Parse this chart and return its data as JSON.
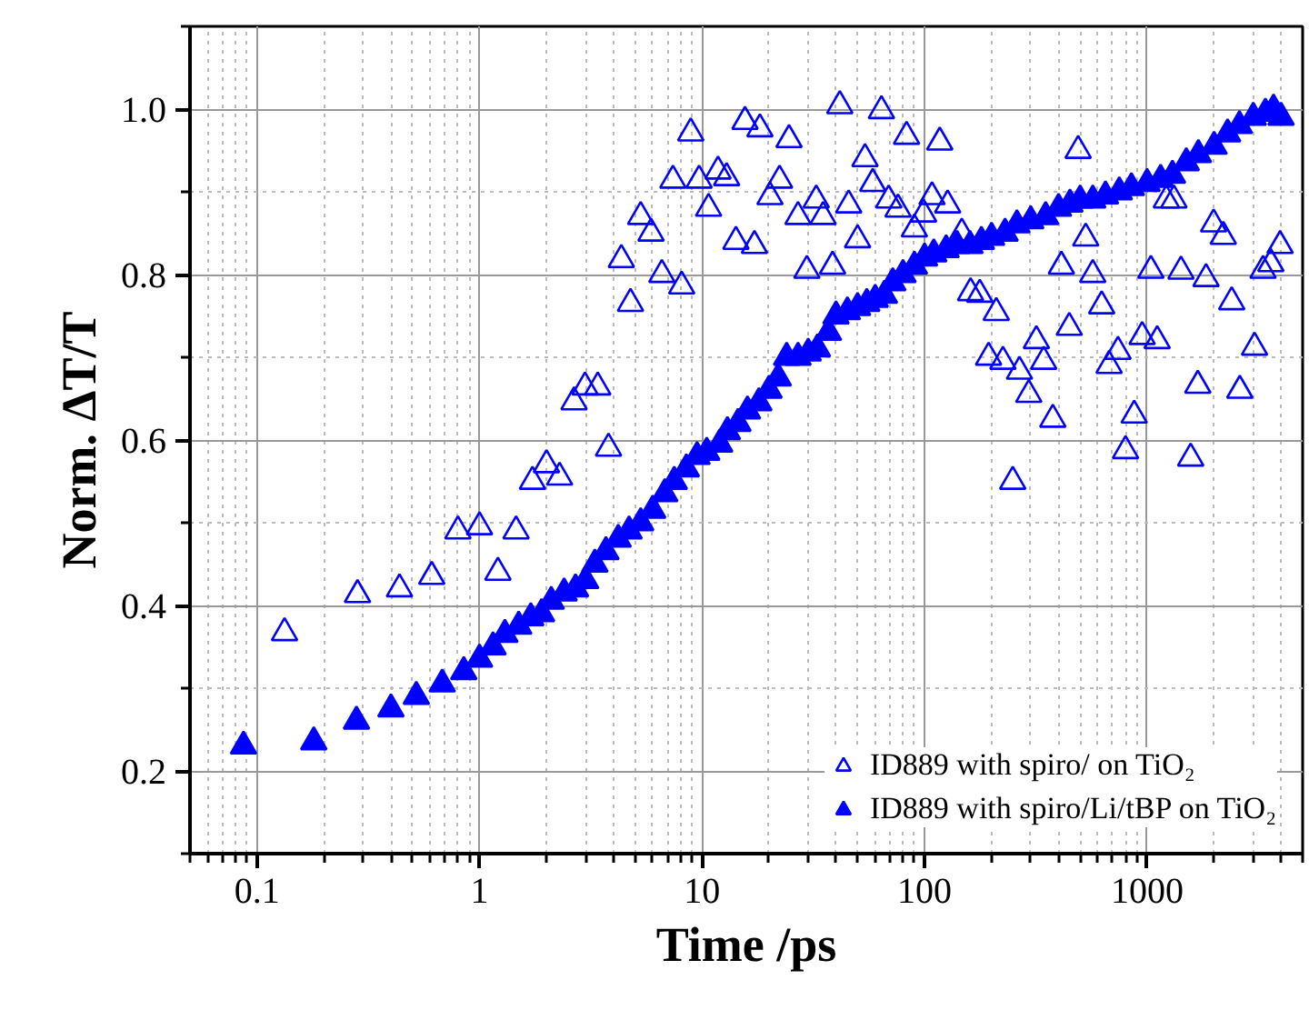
{
  "chart_data": {
    "type": "scatter",
    "xlabel": "Time /ps",
    "ylabel": "Norm. ΔT/T",
    "log": "x",
    "xlim": [
      0.05,
      5000
    ],
    "ylim": [
      0.1,
      1.1
    ],
    "xticks": [
      0.1,
      1,
      10,
      100,
      1000
    ],
    "yticks": [
      0.2,
      0.4,
      0.6,
      0.8,
      {
        "value": 1.0,
        "label": "1.0"
      }
    ],
    "grid": true,
    "legend": "bottom right",
    "series": [
      {
        "name": "ID889 with spiro/ on TiO₂",
        "color": "#0000ff",
        "marker": "triangle-open",
        "x": [
          0.133,
          0.283,
          0.437,
          0.61,
          0.8,
          1.0,
          1.21,
          1.46,
          1.73,
          2.0,
          2.29,
          2.66,
          2.98,
          3.4,
          3.8,
          4.34,
          4.77,
          5.3,
          5.9,
          6.6,
          7.4,
          8.1,
          8.9,
          9.7,
          10.7,
          11.8,
          12.9,
          14.2,
          15.6,
          17.2,
          18.2,
          20.2,
          22.3,
          24.6,
          27,
          29.6,
          32.6,
          35,
          38.6,
          41.6,
          45.6,
          50,
          54,
          58.5,
          64,
          69,
          76,
          83,
          90,
          99,
          108,
          117,
          127,
          147,
          161,
          177,
          194,
          210,
          225,
          249,
          267,
          294,
          318,
          343,
          377,
          412,
          447,
          490,
          530,
          570,
          625,
          675,
          740,
          800,
          875,
          950,
          1040,
          1110,
          1220,
          1320,
          1420,
          1570,
          1690,
          1840,
          1990,
          2200,
          2400,
          2610,
          3040,
          3320,
          3600,
          3960
        ],
        "values": [
          0.367,
          0.413,
          0.42,
          0.435,
          0.49,
          0.495,
          0.44,
          0.49,
          0.55,
          0.57,
          0.555,
          0.646,
          0.664,
          0.664,
          0.59,
          0.818,
          0.765,
          0.87,
          0.85,
          0.8,
          0.914,
          0.786,
          0.971,
          0.914,
          0.88,
          0.925,
          0.917,
          0.84,
          0.985,
          0.835,
          0.976,
          0.894,
          0.914,
          0.963,
          0.87,
          0.805,
          0.89,
          0.87,
          0.81,
          1.004,
          0.884,
          0.842,
          0.94,
          0.91,
          0.998,
          0.89,
          0.879,
          0.967,
          0.855,
          0.873,
          0.894,
          0.96,
          0.884,
          0.85,
          0.778,
          0.776,
          0.7,
          0.754,
          0.695,
          0.55,
          0.683,
          0.655,
          0.72,
          0.695,
          0.625,
          0.81,
          0.736,
          0.95,
          0.844,
          0.8,
          0.762,
          0.69,
          0.707,
          0.587,
          0.63,
          0.725,
          0.805,
          0.72,
          0.89,
          0.89,
          0.804,
          0.578,
          0.666,
          0.795,
          0.861,
          0.846,
          0.767,
          0.66,
          0.712,
          0.805,
          0.813,
          0.835
        ]
      },
      {
        "name": "ID889 with spiro/Li/tBP on TiO₂",
        "color": "#0000ff",
        "marker": "triangle",
        "x": [
          0.087,
          0.18,
          0.28,
          0.4,
          0.52,
          0.68,
          0.85,
          1.0,
          1.15,
          1.3,
          1.5,
          1.7,
          1.9,
          2.1,
          2.4,
          2.7,
          3.0,
          3.3,
          3.7,
          4.2,
          4.7,
          5.3,
          6.0,
          6.8,
          7.5,
          8.5,
          9.5,
          10.5,
          12,
          13,
          14.5,
          16,
          18,
          20,
          22,
          24,
          27,
          30,
          33,
          37,
          40,
          45,
          50,
          55,
          60,
          66,
          72,
          80,
          90,
          100,
          110,
          125,
          140,
          160,
          180,
          200,
          230,
          260,
          300,
          350,
          400,
          450,
          500,
          570,
          650,
          750,
          850,
          1000,
          1150,
          1300,
          1500,
          1700,
          2000,
          2300,
          2600,
          3000,
          3400,
          3700,
          4000
        ],
        "values": [
          0.23,
          0.235,
          0.26,
          0.275,
          0.29,
          0.305,
          0.32,
          0.335,
          0.35,
          0.365,
          0.375,
          0.385,
          0.39,
          0.405,
          0.415,
          0.42,
          0.43,
          0.45,
          0.465,
          0.48,
          0.49,
          0.5,
          0.515,
          0.535,
          0.55,
          0.565,
          0.58,
          0.585,
          0.595,
          0.61,
          0.62,
          0.635,
          0.645,
          0.66,
          0.675,
          0.7,
          0.7,
          0.705,
          0.71,
          0.73,
          0.75,
          0.755,
          0.76,
          0.765,
          0.77,
          0.775,
          0.79,
          0.8,
          0.81,
          0.82,
          0.825,
          0.83,
          0.835,
          0.835,
          0.84,
          0.845,
          0.85,
          0.86,
          0.865,
          0.87,
          0.88,
          0.885,
          0.89,
          0.89,
          0.895,
          0.9,
          0.905,
          0.91,
          0.915,
          0.92,
          0.935,
          0.945,
          0.955,
          0.97,
          0.98,
          0.99,
          0.995,
          1.0,
          0.99
        ]
      }
    ]
  }
}
